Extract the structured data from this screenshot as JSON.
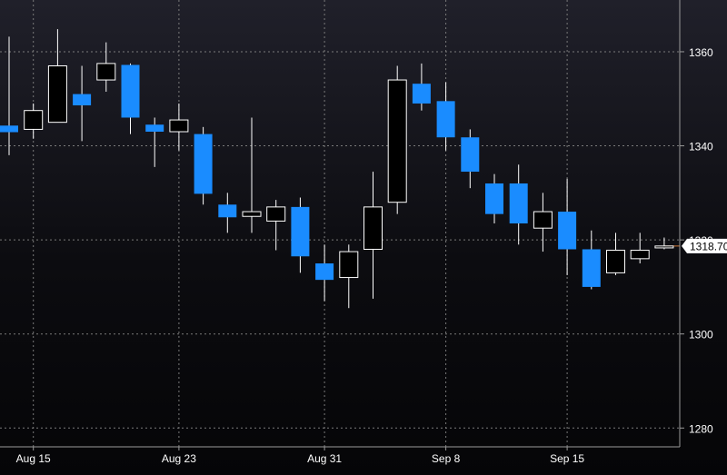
{
  "chart_data": {
    "type": "candlestick",
    "title": "",
    "xlabel": "",
    "ylabel": "",
    "ylim": [
      1276,
      1371
    ],
    "x_tick_labels": [
      "Aug 15",
      "Aug 23",
      "Aug 31",
      "Sep 8",
      "Sep 15"
    ],
    "x_tick_candle_index": [
      1,
      7,
      13,
      18,
      23
    ],
    "y_ticks": [
      1280,
      1300,
      1320,
      1340,
      1360
    ],
    "y_tick_labels": [
      "1280",
      "1300",
      "1320",
      "1340",
      "1360"
    ],
    "last_price": 1318.7,
    "last_price_label": "1318.70",
    "grid": "dotted",
    "colors": {
      "up_fill": "#000000",
      "up_outline": "#ffffff",
      "down_fill": "#1a8cff",
      "wick": "#ffffff",
      "grid": "#7a7a7a",
      "axis_text": "#ffffff",
      "last_price_line": "#d07a3a"
    },
    "candles": [
      {
        "open": 1344.3,
        "high": 1363.2,
        "low": 1338.0,
        "close": 1342.9
      },
      {
        "open": 1343.5,
        "high": 1349.0,
        "low": 1341.5,
        "close": 1347.5
      },
      {
        "open": 1345.0,
        "high": 1364.8,
        "low": 1345.0,
        "close": 1357.0
      },
      {
        "open": 1351.0,
        "high": 1357.0,
        "low": 1341.0,
        "close": 1348.6
      },
      {
        "open": 1354.0,
        "high": 1362.0,
        "low": 1351.5,
        "close": 1357.5
      },
      {
        "open": 1357.2,
        "high": 1357.5,
        "low": 1342.5,
        "close": 1346.0
      },
      {
        "open": 1344.5,
        "high": 1346.0,
        "low": 1335.5,
        "close": 1343.0
      },
      {
        "open": 1343.0,
        "high": 1349.0,
        "low": 1339.0,
        "close": 1345.5
      },
      {
        "open": 1342.5,
        "high": 1344.0,
        "low": 1327.5,
        "close": 1329.8
      },
      {
        "open": 1327.5,
        "high": 1330.0,
        "low": 1321.5,
        "close": 1324.8
      },
      {
        "open": 1325.0,
        "high": 1346.0,
        "low": 1321.5,
        "close": 1326.0
      },
      {
        "open": 1324.0,
        "high": 1328.5,
        "low": 1317.8,
        "close": 1327.0
      },
      {
        "open": 1327.0,
        "high": 1329.0,
        "low": 1313.0,
        "close": 1316.5
      },
      {
        "open": 1315.0,
        "high": 1319.0,
        "low": 1307.0,
        "close": 1311.5
      },
      {
        "open": 1312.0,
        "high": 1319.0,
        "low": 1305.5,
        "close": 1317.5
      },
      {
        "open": 1318.0,
        "high": 1334.5,
        "low": 1307.5,
        "close": 1327.0
      },
      {
        "open": 1328.0,
        "high": 1357.0,
        "low": 1325.5,
        "close": 1354.0
      },
      {
        "open": 1353.2,
        "high": 1357.5,
        "low": 1347.5,
        "close": 1349.0
      },
      {
        "open": 1349.5,
        "high": 1353.5,
        "low": 1339.0,
        "close": 1341.8
      },
      {
        "open": 1341.8,
        "high": 1343.5,
        "low": 1331.0,
        "close": 1334.5
      },
      {
        "open": 1332.0,
        "high": 1334.0,
        "low": 1323.5,
        "close": 1325.5
      },
      {
        "open": 1332.0,
        "high": 1336.0,
        "low": 1319.0,
        "close": 1323.5
      },
      {
        "open": 1322.5,
        "high": 1330.0,
        "low": 1317.5,
        "close": 1326.0
      },
      {
        "open": 1326.0,
        "high": 1333.0,
        "low": 1312.5,
        "close": 1318.0
      },
      {
        "open": 1318.0,
        "high": 1322.0,
        "low": 1309.5,
        "close": 1310.0
      },
      {
        "open": 1313.0,
        "high": 1321.5,
        "low": 1312.5,
        "close": 1317.8
      },
      {
        "open": 1316.0,
        "high": 1321.5,
        "low": 1315.0,
        "close": 1317.8
      },
      {
        "open": 1318.3,
        "high": 1320.5,
        "low": 1318.0,
        "close": 1318.7
      }
    ]
  }
}
